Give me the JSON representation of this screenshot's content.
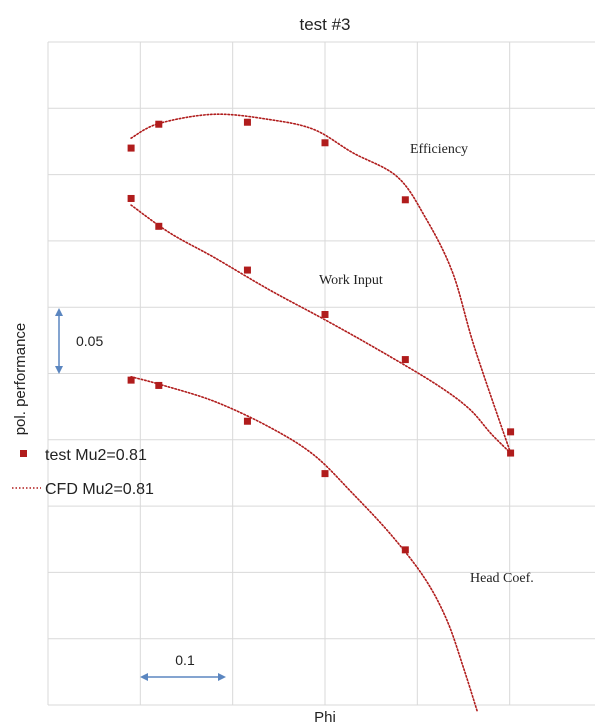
{
  "chart_data": {
    "type": "scatter",
    "title": "test #3",
    "xlabel": "Phi",
    "ylabel": "pol. performance",
    "grid": true,
    "legend_placement": "left",
    "xlim": [
      0,
      1
    ],
    "ylim": [
      0,
      1
    ],
    "colors": {
      "marker": "#b01c1c",
      "curve": "#b01c1c",
      "grid": "#d9d9d9",
      "arrow": "#5b86c0"
    },
    "legend": [
      {
        "kind": "marker",
        "label": "test Mu2=0.81"
      },
      {
        "kind": "line",
        "label": "CFD Mu2=0.81"
      }
    ],
    "curve_labels": [
      "Efficiency",
      "Work Input",
      "Head Coef."
    ],
    "scale_bars": [
      {
        "orientation": "vertical",
        "label": "0.05"
      },
      {
        "orientation": "horizontal",
        "label": "0.1"
      }
    ],
    "series": [
      {
        "group": "Efficiency",
        "kind": "test",
        "points": [
          [
            0.15,
            0.84
          ],
          [
            0.2,
            0.876
          ],
          [
            0.36,
            0.879
          ],
          [
            0.5,
            0.848
          ],
          [
            0.645,
            0.762
          ],
          [
            0.835,
            0.38
          ]
        ]
      },
      {
        "group": "Efficiency",
        "kind": "cfd",
        "points": [
          [
            0.15,
            0.855
          ],
          [
            0.2,
            0.877
          ],
          [
            0.3,
            0.891
          ],
          [
            0.4,
            0.883
          ],
          [
            0.48,
            0.868
          ],
          [
            0.55,
            0.833
          ],
          [
            0.63,
            0.797
          ],
          [
            0.68,
            0.737
          ],
          [
            0.73,
            0.653
          ],
          [
            0.77,
            0.539
          ],
          [
            0.835,
            0.38
          ]
        ]
      },
      {
        "group": "Work Input",
        "kind": "test",
        "points": [
          [
            0.15,
            0.764
          ],
          [
            0.2,
            0.722
          ],
          [
            0.36,
            0.656
          ],
          [
            0.5,
            0.589
          ],
          [
            0.645,
            0.521
          ],
          [
            0.835,
            0.412
          ]
        ]
      },
      {
        "group": "Work Input",
        "kind": "cfd",
        "points": [
          [
            0.15,
            0.754
          ],
          [
            0.22,
            0.712
          ],
          [
            0.3,
            0.675
          ],
          [
            0.4,
            0.626
          ],
          [
            0.5,
            0.581
          ],
          [
            0.6,
            0.534
          ],
          [
            0.7,
            0.484
          ],
          [
            0.76,
            0.447
          ],
          [
            0.8,
            0.409
          ],
          [
            0.835,
            0.38
          ]
        ]
      },
      {
        "group": "Head Coef.",
        "kind": "test",
        "points": [
          [
            0.15,
            0.49
          ],
          [
            0.2,
            0.482
          ],
          [
            0.36,
            0.428
          ],
          [
            0.5,
            0.349
          ],
          [
            0.645,
            0.234
          ]
        ]
      },
      {
        "group": "Head Coef.",
        "kind": "cfd",
        "points": [
          [
            0.15,
            0.495
          ],
          [
            0.2,
            0.484
          ],
          [
            0.3,
            0.458
          ],
          [
            0.4,
            0.419
          ],
          [
            0.48,
            0.377
          ],
          [
            0.55,
            0.319
          ],
          [
            0.62,
            0.256
          ],
          [
            0.68,
            0.191
          ],
          [
            0.72,
            0.128
          ],
          [
            0.75,
            0.056
          ],
          [
            0.775,
            -0.01
          ]
        ]
      }
    ]
  }
}
